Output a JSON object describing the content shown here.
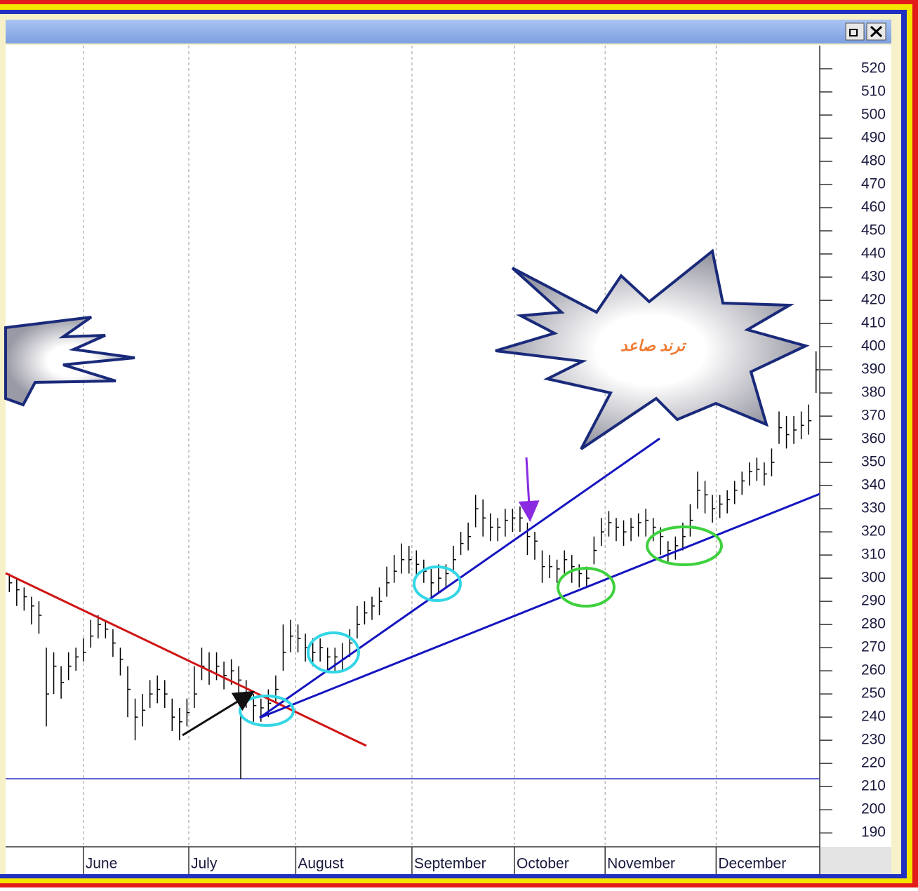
{
  "chart_data": {
    "type": "ohlc",
    "annotations": [
      "ترند صاعد"
    ],
    "color": "#000000",
    "high": [
      302,
      300,
      296,
      292,
      290,
      270,
      268,
      262,
      268,
      270,
      274,
      282,
      284,
      282,
      278,
      270,
      262,
      248,
      250,
      256,
      258,
      256,
      248,
      244,
      248,
      262,
      270,
      268,
      268,
      264,
      265,
      262,
      256,
      250,
      248,
      252,
      258,
      280,
      282,
      280,
      276,
      274,
      274,
      270,
      270,
      272,
      278,
      288,
      290,
      292,
      296,
      305,
      310,
      315,
      314,
      312,
      308,
      304,
      306,
      306,
      314,
      320,
      324,
      336,
      334,
      328,
      326,
      330,
      330,
      331,
      324,
      320,
      312,
      310,
      308,
      312,
      310,
      306,
      305,
      318,
      326,
      329,
      326,
      325,
      326,
      328,
      330,
      326,
      322,
      316,
      318,
      324,
      332,
      346,
      342,
      336,
      336,
      338,
      342,
      346,
      350,
      352,
      350,
      356,
      372,
      370,
      370,
      372,
      375,
      398
    ],
    "low": [
      294,
      288,
      286,
      280,
      276,
      236,
      250,
      248,
      256,
      260,
      264,
      270,
      274,
      274,
      266,
      258,
      240,
      230,
      236,
      244,
      246,
      244,
      234,
      230,
      236,
      244,
      256,
      254,
      256,
      252,
      254,
      250,
      244,
      238,
      238,
      240,
      246,
      260,
      268,
      268,
      264,
      262,
      264,
      260,
      260,
      260,
      266,
      274,
      280,
      282,
      284,
      292,
      298,
      302,
      302,
      300,
      298,
      292,
      294,
      296,
      302,
      310,
      312,
      322,
      318,
      316,
      316,
      318,
      320,
      320,
      310,
      308,
      298,
      300,
      298,
      302,
      298,
      296,
      296,
      306,
      314,
      318,
      316,
      314,
      316,
      318,
      318,
      316,
      310,
      306,
      308,
      312,
      318,
      330,
      328,
      324,
      326,
      328,
      332,
      336,
      340,
      342,
      340,
      344,
      358,
      356,
      358,
      360,
      362,
      380
    ],
    "close": [
      298,
      295,
      292,
      288,
      284,
      250,
      262,
      255,
      262,
      266,
      268,
      275,
      280,
      278,
      272,
      265,
      252,
      240,
      243,
      250,
      252,
      250,
      240,
      238,
      242,
      250,
      262,
      260,
      262,
      258,
      260,
      256,
      250,
      245,
      244,
      246,
      252,
      268,
      275,
      274,
      270,
      268,
      270,
      266,
      266,
      265,
      272,
      280,
      285,
      288,
      290,
      298,
      303,
      308,
      308,
      306,
      303,
      298,
      300,
      302,
      308,
      315,
      318,
      330,
      326,
      322,
      322,
      325,
      326,
      326,
      318,
      316,
      305,
      305,
      304,
      308,
      305,
      302,
      300,
      312,
      320,
      324,
      322,
      320,
      322,
      324,
      325,
      322,
      318,
      312,
      314,
      318,
      325,
      338,
      336,
      330,
      332,
      334,
      338,
      342,
      346,
      347,
      345,
      350,
      365,
      362,
      364,
      366,
      368,
      390
    ],
    "xlim": [
      0,
      110
    ],
    "xticks": [
      {
        "value": 10.5,
        "label": "June"
      },
      {
        "value": 24.75,
        "label": "July"
      },
      {
        "value": 39.2,
        "label": "August"
      },
      {
        "value": 54.9,
        "label": "September"
      },
      {
        "value": 68.75,
        "label": "October"
      },
      {
        "value": 81,
        "label": "November"
      },
      {
        "value": 96,
        "label": "December"
      }
    ],
    "ylim": [
      184,
      530
    ],
    "yticks": [
      190,
      200,
      210,
      220,
      230,
      240,
      250,
      260,
      270,
      280,
      290,
      300,
      310,
      320,
      330,
      340,
      350,
      360,
      370,
      380,
      390,
      400,
      410,
      420,
      430,
      440,
      450,
      460,
      470,
      480,
      490,
      500,
      510,
      520
    ],
    "grid": true
  }
}
